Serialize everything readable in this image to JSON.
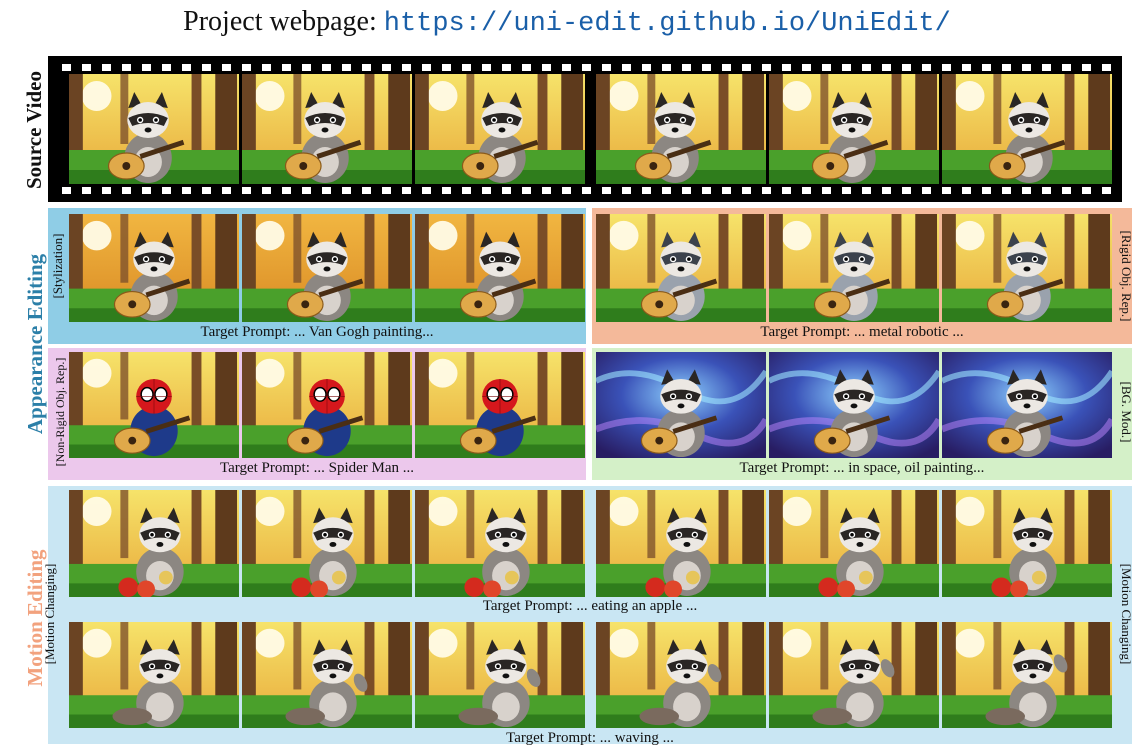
{
  "header": {
    "prefix": "Project webpage:",
    "url": "https://uni-edit.github.io/UniEdit/"
  },
  "rows": {
    "source_label": "Source Video",
    "appearance_label": "Appearance Editing",
    "motion_label": "Motion Editing"
  },
  "panels": {
    "stylization": {
      "tag": "[Stylization]",
      "prompt": "Target Prompt: ... Van Gogh painting..."
    },
    "rigid": {
      "tag": "[Rigid Obj. Rep.]",
      "prompt": "Target Prompt: ... metal robotic ..."
    },
    "nonrigid": {
      "tag": "[Non-Rigid Obj. Rep.]",
      "prompt": "Target Prompt: ... Spider Man ..."
    },
    "bg": {
      "tag": "[BG. Mod.]",
      "prompt": "Target Prompt: ... in space, oil painting..."
    },
    "motion": {
      "tag_left": "[Motion Changing]",
      "tag_right": "[Motion Changing]",
      "prompt_apple": "Target Prompt: ... eating an apple ...",
      "prompt_wave": "Target Prompt: ... waving ..."
    }
  },
  "colors": {
    "stylization_bg": "#8fcde6",
    "rigid_bg": "#f4b99a",
    "nonrigid_bg": "#ecc8ec",
    "bg_mod_bg": "#d4f0c8",
    "motion_bg": "#c9e6f3",
    "appearance_label": "#2b7fa8",
    "motion_label": "#f2a27e"
  }
}
